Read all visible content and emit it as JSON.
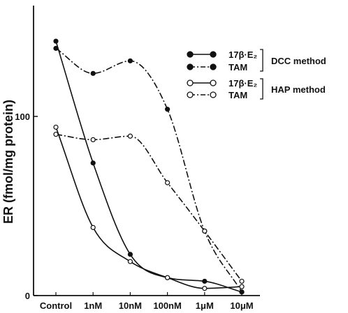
{
  "chart_data": {
    "type": "line",
    "title": "",
    "xlabel": "",
    "ylabel": "ER (fmol/mg protein)",
    "categories": [
      "Control",
      "1nM",
      "10nM",
      "100nM",
      "1μM",
      "10μM"
    ],
    "y_ticks": [
      0,
      100
    ],
    "ylim": [
      0,
      145
    ],
    "grid": false,
    "legend_position": "top-right",
    "series": [
      {
        "name": "17β·E₂",
        "group": "DCC method",
        "marker": "filled",
        "line_style": "solid",
        "points": [
          {
            "x": "Control",
            "y": 142
          },
          {
            "x": "1nM",
            "y": 74
          },
          {
            "x": "10nM",
            "y": 23
          },
          {
            "x": "100nM",
            "y": 10
          },
          {
            "x": "1μM",
            "y": 8
          },
          {
            "x": "10μM",
            "y": 2
          }
        ]
      },
      {
        "name": "TAM",
        "group": "DCC method",
        "marker": "filled",
        "line_style": "dash-dot",
        "points": [
          {
            "x": "Control",
            "y": 138
          },
          {
            "x": "1nM",
            "y": 124
          },
          {
            "x": "10nM",
            "y": 131
          },
          {
            "x": "100nM",
            "y": 104
          },
          {
            "x": "1μM",
            "y": 36
          },
          {
            "x": "10μM",
            "y": 2
          }
        ]
      },
      {
        "name": "17β·E₂",
        "group": "HAP method",
        "marker": "open",
        "line_style": "solid",
        "points": [
          {
            "x": "Control",
            "y": 94
          },
          {
            "x": "1nM",
            "y": 38
          },
          {
            "x": "10nM",
            "y": 19
          },
          {
            "x": "100nM",
            "y": 10
          },
          {
            "x": "1μM",
            "y": 4
          },
          {
            "x": "10μM",
            "y": 5
          }
        ]
      },
      {
        "name": "TAM",
        "group": "HAP method",
        "marker": "open",
        "line_style": "dash-dot",
        "points": [
          {
            "x": "Control",
            "y": 90
          },
          {
            "x": "1nM",
            "y": 87
          },
          {
            "x": "10nM",
            "y": 89
          },
          {
            "x": "100nM",
            "y": 63
          },
          {
            "x": "1μM",
            "y": 36
          },
          {
            "x": "10μM",
            "y": 8
          }
        ]
      }
    ],
    "legend": [
      {
        "label": "17β·E₂",
        "marker": "filled",
        "line_style": "solid"
      },
      {
        "label": "TAM",
        "marker": "filled",
        "line_style": "dash-dot"
      },
      {
        "label": "17β·E₂",
        "marker": "open",
        "line_style": "solid"
      },
      {
        "label": "TAM",
        "marker": "open",
        "line_style": "dash-dot"
      }
    ],
    "legend_groups": [
      "DCC method",
      "HAP method"
    ]
  }
}
